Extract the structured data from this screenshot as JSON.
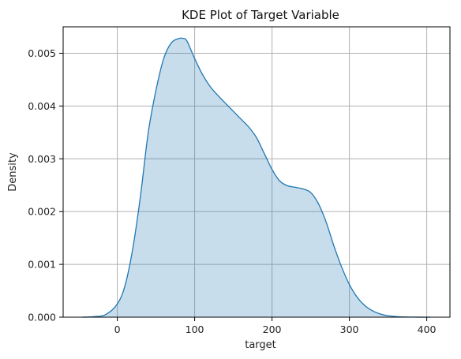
{
  "chart_data": {
    "type": "area",
    "title": "KDE Plot of Target Variable",
    "xlabel": "target",
    "ylabel": "Density",
    "xlim": [
      -70,
      430
    ],
    "ylim": [
      0,
      0.0055
    ],
    "xticks": [
      0,
      100,
      200,
      300,
      400
    ],
    "xtick_labels": [
      "0",
      "100",
      "200",
      "300",
      "400"
    ],
    "yticks": [
      0.0,
      0.001,
      0.002,
      0.003,
      0.004,
      0.005
    ],
    "ytick_labels": [
      "0.000",
      "0.001",
      "0.002",
      "0.003",
      "0.004",
      "0.005"
    ],
    "grid": true,
    "line_color": "#1f77b4",
    "fill_color": "#1f77b4",
    "fill_opacity": 0.25,
    "x": [
      -45,
      -30,
      -15,
      0,
      10,
      20,
      30,
      40,
      50,
      60,
      70,
      80,
      85,
      90,
      100,
      110,
      120,
      130,
      140,
      150,
      160,
      170,
      180,
      190,
      200,
      210,
      220,
      230,
      240,
      250,
      260,
      270,
      280,
      290,
      300,
      310,
      320,
      330,
      340,
      350,
      360,
      370,
      380,
      390,
      405
    ],
    "y": [
      0.0,
      1e-05,
      5e-05,
      0.00025,
      0.0006,
      0.0013,
      0.0023,
      0.0035,
      0.0043,
      0.0049,
      0.0052,
      0.00528,
      0.00528,
      0.00523,
      0.0049,
      0.0046,
      0.00437,
      0.0042,
      0.00405,
      0.0039,
      0.00375,
      0.0036,
      0.0034,
      0.0031,
      0.0028,
      0.00258,
      0.00249,
      0.00246,
      0.00243,
      0.00236,
      0.00215,
      0.0018,
      0.00135,
      0.00095,
      0.00062,
      0.00038,
      0.00022,
      0.00012,
      6e-05,
      2.8e-05,
      1.2e-05,
      5e-06,
      2e-06,
      1e-06,
      0.0
    ]
  }
}
